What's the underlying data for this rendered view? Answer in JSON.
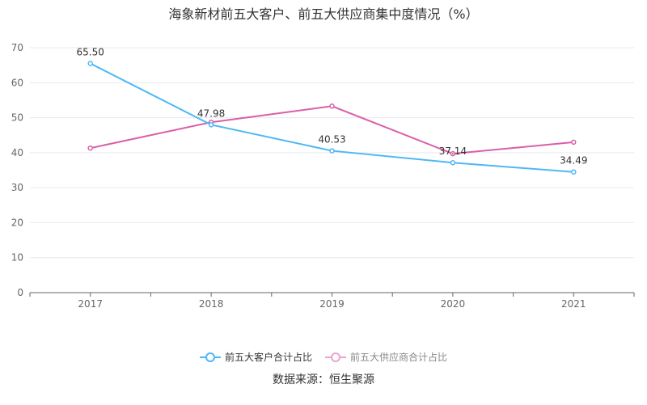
{
  "chart_data": {
    "type": "line",
    "title": "海象新材前五大客户、前五大供应商集中度情况（%）",
    "categories": [
      "2017",
      "2018",
      "2019",
      "2020",
      "2021"
    ],
    "ylim": [
      0,
      70
    ],
    "yticks": [
      0,
      10,
      20,
      30,
      40,
      50,
      60,
      70
    ],
    "grid": true,
    "legend_position": "bottom",
    "series": [
      {
        "name": "前五大客户合计占比",
        "color": "#4db8f5",
        "values": [
          65.5,
          47.98,
          40.53,
          37.14,
          34.49
        ],
        "labels": [
          "65.50",
          "47.98",
          "40.53",
          "37.14",
          "34.49"
        ]
      },
      {
        "name": "前五大供应商合计占比",
        "color": "#d95fa8",
        "legend_color": "#e8a6cf",
        "values": [
          41.3,
          48.7,
          53.3,
          39.7,
          43.0
        ]
      }
    ]
  },
  "source": "数据来源：恒生聚源"
}
